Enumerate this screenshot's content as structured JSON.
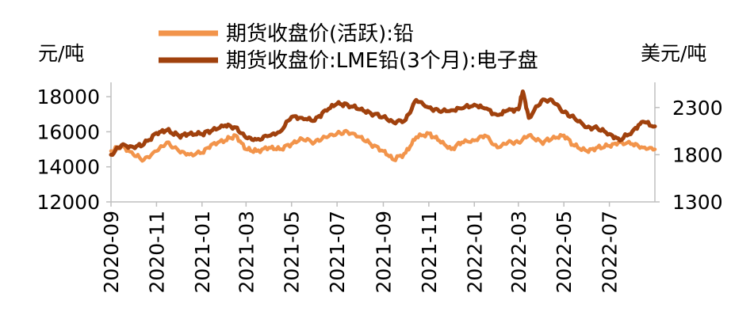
{
  "chart_data": {
    "type": "line",
    "title": "",
    "y_left_unit": "元/吨",
    "y_right_unit": "美元/吨",
    "y_left_ticks": [
      "12000",
      "14000",
      "16000",
      "18000"
    ],
    "y_left_lim": [
      12000,
      19000
    ],
    "y_right_ticks": [
      "1300",
      "1800",
      "2300"
    ],
    "y_right_lim": [
      1300,
      2600
    ],
    "x_ticks": [
      "2020-09",
      "2020-11",
      "2021-01",
      "2021-03",
      "2021-05",
      "2021-07",
      "2021-09",
      "2021-11",
      "2022-01",
      "2022-03",
      "2022-05",
      "2022-07"
    ],
    "x_start": "2020-09-01",
    "x_end": "2022-08-31",
    "grid": false,
    "legend_position": "top",
    "series": [
      {
        "name": "期货收盘价(活跃):铅",
        "axis": "left",
        "color": "#F2944B",
        "x": [
          "2020-09-01",
          "2020-09-15",
          "2020-10-01",
          "2020-10-15",
          "2020-11-01",
          "2020-11-15",
          "2020-12-01",
          "2020-12-15",
          "2021-01-01",
          "2021-01-15",
          "2021-02-01",
          "2021-02-15",
          "2021-03-01",
          "2021-03-15",
          "2021-04-01",
          "2021-04-15",
          "2021-05-01",
          "2021-05-15",
          "2021-06-01",
          "2021-06-15",
          "2021-07-01",
          "2021-07-15",
          "2021-08-01",
          "2021-08-15",
          "2021-09-01",
          "2021-09-15",
          "2021-10-01",
          "2021-10-15",
          "2021-11-01",
          "2021-11-15",
          "2021-12-01",
          "2021-12-15",
          "2022-01-01",
          "2022-01-15",
          "2022-02-01",
          "2022-02-15",
          "2022-03-01",
          "2022-03-15",
          "2022-04-01",
          "2022-04-15",
          "2022-05-01",
          "2022-05-15",
          "2022-06-01",
          "2022-06-15",
          "2022-07-01",
          "2022-07-15",
          "2022-08-01",
          "2022-08-15",
          "2022-08-31"
        ],
        "values": [
          14900,
          15200,
          14700,
          14400,
          14900,
          15400,
          14900,
          14700,
          14800,
          15300,
          15500,
          15800,
          15000,
          14900,
          15100,
          15000,
          15300,
          15600,
          15400,
          15700,
          15900,
          16000,
          15700,
          15300,
          14900,
          14400,
          14800,
          15700,
          15900,
          15500,
          15000,
          15400,
          15500,
          15800,
          15100,
          15400,
          15400,
          15800,
          15400,
          15600,
          15800,
          15200,
          14900,
          15100,
          15200,
          15400,
          15300,
          15100,
          15000
        ]
      },
      {
        "name": "期货收盘价:LME铅(3个月):电子盘",
        "axis": "right",
        "color": "#A0410D",
        "x": [
          "2020-09-01",
          "2020-09-15",
          "2020-10-01",
          "2020-10-15",
          "2020-11-01",
          "2020-11-15",
          "2020-12-01",
          "2020-12-15",
          "2021-01-01",
          "2021-01-15",
          "2021-02-01",
          "2021-02-15",
          "2021-03-01",
          "2021-03-15",
          "2021-04-01",
          "2021-04-15",
          "2021-05-01",
          "2021-05-15",
          "2021-06-01",
          "2021-06-15",
          "2021-07-01",
          "2021-07-15",
          "2021-08-01",
          "2021-08-15",
          "2021-09-01",
          "2021-09-15",
          "2021-10-01",
          "2021-10-15",
          "2021-11-01",
          "2021-11-15",
          "2021-12-01",
          "2021-12-15",
          "2022-01-01",
          "2022-01-15",
          "2022-02-01",
          "2022-02-15",
          "2022-03-01",
          "2022-03-07",
          "2022-03-15",
          "2022-04-01",
          "2022-04-15",
          "2022-05-01",
          "2022-05-15",
          "2022-06-01",
          "2022-06-15",
          "2022-07-01",
          "2022-07-15",
          "2022-08-01",
          "2022-08-15",
          "2022-08-31"
        ],
        "values": [
          1800,
          1900,
          1880,
          1910,
          2030,
          2060,
          2000,
          2020,
          2020,
          2060,
          2110,
          2090,
          1980,
          1960,
          2000,
          2040,
          2200,
          2190,
          2160,
          2270,
          2340,
          2330,
          2280,
          2240,
          2200,
          2140,
          2170,
          2380,
          2300,
          2260,
          2270,
          2290,
          2330,
          2290,
          2220,
          2270,
          2280,
          2470,
          2190,
          2370,
          2380,
          2250,
          2190,
          2090,
          2080,
          2020,
          1950,
          2050,
          2150,
          2100
        ]
      }
    ]
  }
}
